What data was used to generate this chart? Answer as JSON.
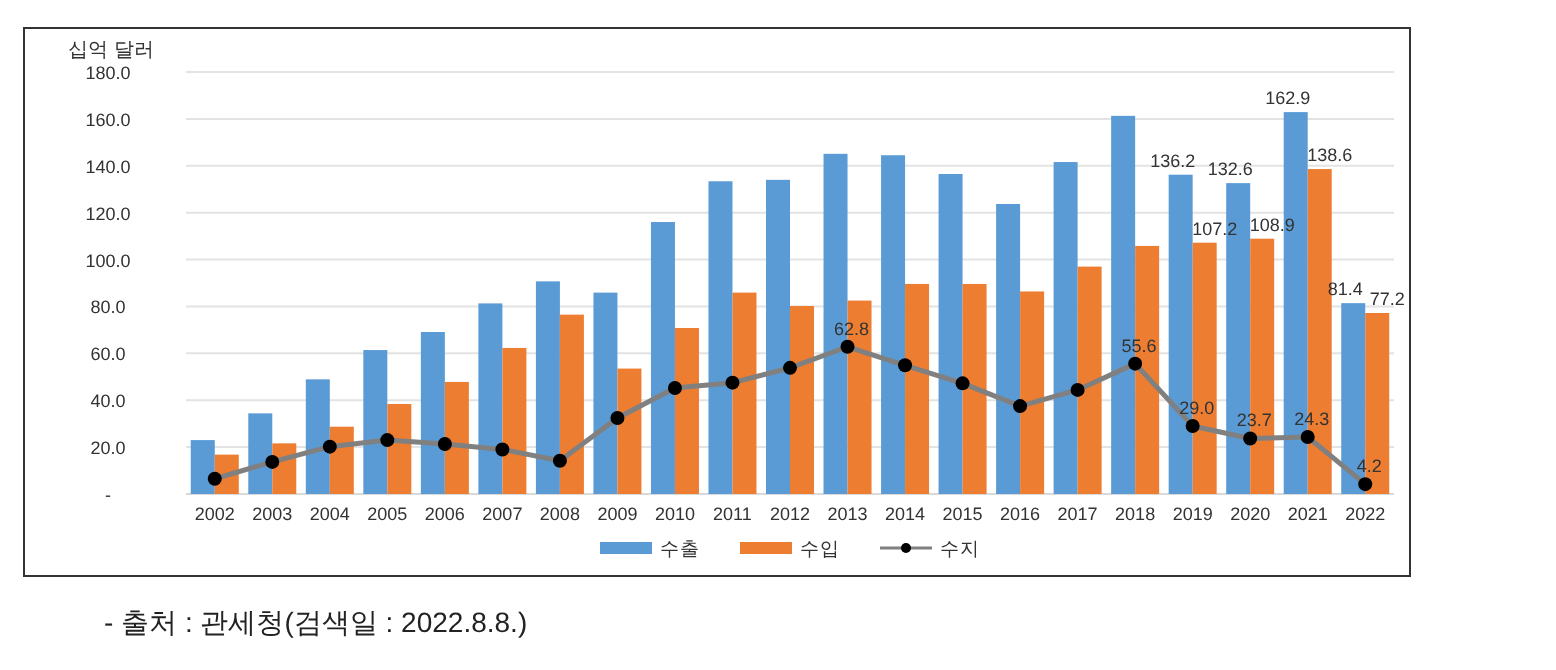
{
  "chart_data": {
    "type": "bar",
    "ylabel": "십억 달러",
    "categories": [
      "2002",
      "2003",
      "2004",
      "2005",
      "2006",
      "2007",
      "2008",
      "2009",
      "2010",
      "2011",
      "2012",
      "2013",
      "2014",
      "2015",
      "2016",
      "2017",
      "2018",
      "2019",
      "2020",
      "2021",
      "2022"
    ],
    "series": [
      {
        "name": "수출",
        "color": "#5b9bd5",
        "values": [
          23.0,
          34.4,
          48.9,
          61.4,
          69.1,
          81.3,
          90.7,
          85.9,
          116.0,
          133.4,
          134.0,
          145.1,
          144.5,
          136.5,
          123.7,
          141.6,
          161.3,
          136.2,
          132.6,
          162.9,
          81.4
        ],
        "value_labels": [
          null,
          null,
          null,
          null,
          null,
          null,
          null,
          null,
          null,
          null,
          null,
          null,
          null,
          null,
          null,
          null,
          null,
          "136.2",
          "132.6",
          "162.9",
          "81.4"
        ]
      },
      {
        "name": "수입",
        "color": "#ed7d31",
        "values": [
          16.8,
          21.6,
          28.7,
          38.4,
          47.8,
          62.3,
          76.5,
          53.5,
          70.8,
          85.9,
          80.2,
          82.5,
          89.6,
          89.6,
          86.4,
          97.0,
          105.8,
          107.2,
          108.9,
          138.6,
          77.2
        ],
        "value_labels": [
          null,
          null,
          null,
          null,
          null,
          null,
          null,
          null,
          null,
          null,
          null,
          null,
          null,
          null,
          null,
          null,
          null,
          "107.2",
          "108.9",
          "138.6",
          "77.2"
        ]
      },
      {
        "name": "수지",
        "type": "line",
        "color": "#808080",
        "marker": "circle",
        "values": [
          6.5,
          13.7,
          20.2,
          23.0,
          21.3,
          19.0,
          14.2,
          32.4,
          45.2,
          47.5,
          53.8,
          62.8,
          54.9,
          47.2,
          37.5,
          44.4,
          55.6,
          29.0,
          23.7,
          24.3,
          4.2
        ],
        "value_labels": [
          null,
          null,
          null,
          null,
          null,
          null,
          null,
          null,
          null,
          null,
          null,
          "62.8",
          null,
          null,
          null,
          null,
          "55.6",
          "29.0",
          "23.7",
          "24.3",
          "4.2"
        ]
      }
    ],
    "ylim": [
      0,
      180
    ],
    "yticks": [
      {
        "value": 0,
        "label": "-"
      },
      {
        "value": 20,
        "label": "20.0"
      },
      {
        "value": 40,
        "label": "40.0"
      },
      {
        "value": 60,
        "label": "60.0"
      },
      {
        "value": 80,
        "label": "80.0"
      },
      {
        "value": 100,
        "label": "100.0"
      },
      {
        "value": 120,
        "label": "120.0"
      },
      {
        "value": 140,
        "label": "140.0"
      },
      {
        "value": 160,
        "label": "160.0"
      },
      {
        "value": 180,
        "label": "180.0"
      }
    ],
    "grid": "y",
    "legend": "bottom",
    "annotations": [
      "- 출처 : 관세청(검색일 : 2022.8.8.)"
    ]
  }
}
